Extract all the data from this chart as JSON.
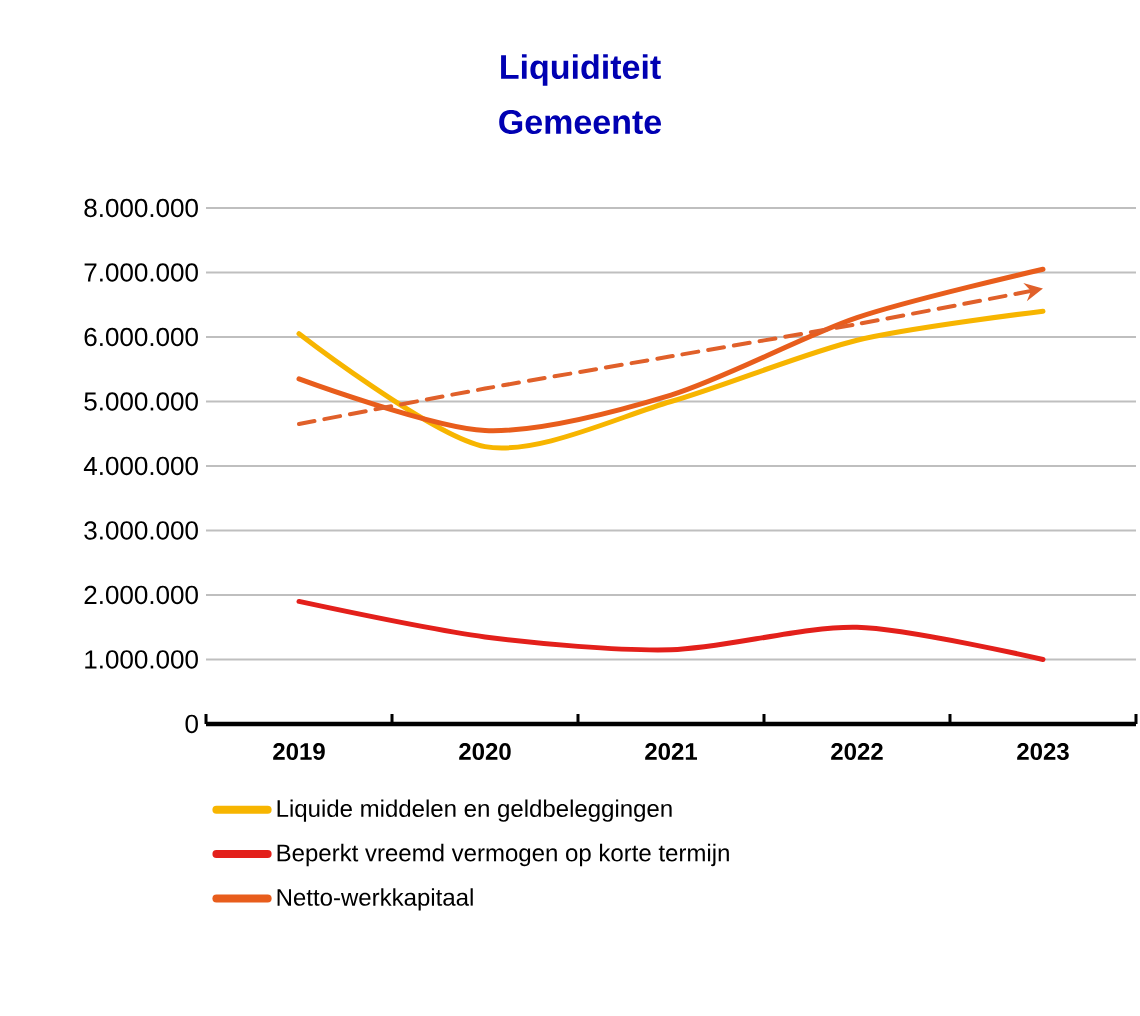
{
  "chart_data": {
    "type": "line",
    "title": "Liquiditeit",
    "subtitle": "Gemeente",
    "categories": [
      "2019",
      "2020",
      "2021",
      "2022",
      "2023"
    ],
    "series": [
      {
        "name": "Liquide middelen en geldbeleggingen",
        "color": "#f7b500",
        "values": [
          6050000,
          4300000,
          5000000,
          5950000,
          6400000
        ]
      },
      {
        "name": "Beperkt vreemd vermogen op korte termijn",
        "color": "#e3201b",
        "values": [
          1900000,
          1350000,
          1150000,
          1500000,
          1000000
        ]
      },
      {
        "name": "Netto-werkkapitaal",
        "color": "#e85d1c",
        "values": [
          5350000,
          4550000,
          5100000,
          6300000,
          7050000
        ]
      },
      {
        "type": "line",
        "color": "#e0602a",
        "line_style": "dashed",
        "values": [
          4650000,
          5200000,
          5700000,
          6200000,
          6750000
        ]
      }
    ],
    "ylim": [
      0,
      8000000
    ],
    "yticks": [
      0,
      {
        "value": 1000000,
        "label": "1.000.000"
      },
      {
        "value": 2000000,
        "label": "2.000.000"
      },
      {
        "value": 3000000,
        "label": "3.000.000"
      },
      {
        "value": 4000000,
        "label": "4.000.000"
      },
      {
        "value": 5000000,
        "label": "5.000.000"
      },
      {
        "value": 6000000,
        "label": "6.000.000"
      },
      {
        "value": 7000000,
        "label": "7.000.000"
      },
      {
        "value": 8000000,
        "label": "8.000.000"
      }
    ],
    "grid": "y",
    "legend": "bottom",
    "line_style": "solid",
    "marker": "none"
  }
}
